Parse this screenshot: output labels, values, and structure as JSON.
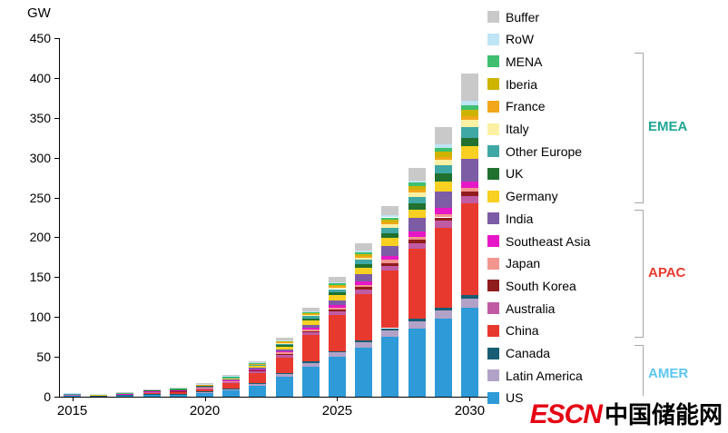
{
  "axis": {
    "unit": "GW"
  },
  "watermark": {
    "logo": "ESCN",
    "site_name": "中国储能网"
  },
  "chart_data": {
    "type": "bar",
    "stacked": true,
    "title": "",
    "ylabel": "GW",
    "xlabel": "",
    "ylim": [
      0,
      450
    ],
    "grid": false,
    "legend_position": "right",
    "y_ticks": [
      0,
      50,
      100,
      150,
      200,
      250,
      300,
      350,
      400,
      450
    ],
    "categories": [
      "2015",
      "2016",
      "2017",
      "2018",
      "2019",
      "2020",
      "2021",
      "2022",
      "2023",
      "2024",
      "2025",
      "2026",
      "2027",
      "2028",
      "2029",
      "2030"
    ],
    "x_ticks": [
      {
        "index": 0,
        "label": "2015"
      },
      {
        "index": 5,
        "label": "2020"
      },
      {
        "index": 10,
        "label": "2025"
      },
      {
        "index": 15,
        "label": "2030"
      }
    ],
    "series": [
      {
        "name": "US",
        "color": "#2E9AD8",
        "values": [
          1.5,
          1,
          1.5,
          2.5,
          3,
          5,
          8,
          14,
          25,
          38,
          50,
          62,
          75,
          85,
          98,
          112
        ]
      },
      {
        "name": "Latin America",
        "color": "#B3A2C7",
        "values": [
          0.3,
          0.2,
          0.3,
          0.5,
          0.5,
          1,
          1.5,
          2.5,
          3.5,
          4.5,
          5.5,
          6.5,
          8,
          9,
          10,
          11
        ]
      },
      {
        "name": "Canada",
        "color": "#175E74",
        "values": [
          0.1,
          0.1,
          0.1,
          0.2,
          0.3,
          0.4,
          0.5,
          1,
          1,
          1.5,
          2,
          2.5,
          3,
          3.5,
          4,
          4.5
        ]
      },
      {
        "name": "China",
        "color": "#E8392E",
        "values": [
          0.5,
          0.5,
          1,
          2.5,
          2.5,
          3.5,
          7,
          12,
          20,
          33,
          45,
          58,
          72,
          88,
          100,
          115
        ]
      },
      {
        "name": "Australia",
        "color": "#C05BA4",
        "values": [
          0.3,
          0.2,
          0.3,
          0.5,
          0.6,
          0.8,
          1.2,
          2,
          3,
          3.5,
          4.5,
          5.5,
          6.5,
          7.5,
          8.5,
          9.5
        ]
      },
      {
        "name": "South Korea",
        "color": "#8F1D1D",
        "values": [
          0.3,
          0.2,
          0.3,
          0.5,
          0.5,
          0.6,
          0.8,
          1.2,
          1.5,
          2,
          2.5,
          3,
          3.5,
          4,
          4.5,
          5
        ]
      },
      {
        "name": "Japan",
        "color": "#F2968F",
        "values": [
          0.2,
          0.2,
          0.3,
          0.4,
          0.5,
          0.6,
          0.8,
          1,
          1.5,
          2,
          2.5,
          3,
          3.5,
          4,
          4.5,
          5
        ]
      },
      {
        "name": "Southeast Asia",
        "color": "#E617C6",
        "values": [
          0.1,
          0.1,
          0.1,
          0.2,
          0.3,
          0.4,
          0.6,
          1,
          1.5,
          2,
          3,
          4,
          5,
          6,
          7,
          8
        ]
      },
      {
        "name": "India",
        "color": "#7D5CA6",
        "values": [
          0.1,
          0.1,
          0.2,
          0.3,
          0.4,
          0.6,
          1,
          1.5,
          2.5,
          4,
          6,
          9,
          13,
          17,
          21,
          28
        ]
      },
      {
        "name": "Germany",
        "color": "#F7D021",
        "values": [
          0.3,
          0.2,
          0.3,
          0.5,
          0.6,
          0.8,
          1.2,
          2,
          3.5,
          5,
          6.5,
          8,
          9.5,
          11,
          13,
          16
        ]
      },
      {
        "name": "UK",
        "color": "#20712F",
        "values": [
          0.1,
          0.1,
          0.2,
          0.3,
          0.4,
          0.5,
          0.8,
          1.2,
          2,
          3,
          4,
          5,
          6.5,
          8,
          9.5,
          11
        ]
      },
      {
        "name": "Other Europe",
        "color": "#3FA8A4",
        "values": [
          0.1,
          0.1,
          0.2,
          0.3,
          0.4,
          0.5,
          0.7,
          1,
          1.5,
          2.5,
          3.5,
          5,
          6.5,
          8,
          10,
          13
        ]
      },
      {
        "name": "Italy",
        "color": "#FCF0A3",
        "values": [
          0,
          0,
          0.1,
          0.1,
          0.2,
          0.3,
          0.4,
          0.6,
          1,
          1.5,
          2,
          3,
          4,
          5.5,
          7,
          9
        ]
      },
      {
        "name": "France",
        "color": "#F2A71B",
        "values": [
          0,
          0,
          0.1,
          0.1,
          0.2,
          0.2,
          0.3,
          0.5,
          0.8,
          1,
          1.5,
          2,
          2.5,
          3,
          4,
          5
        ]
      },
      {
        "name": "Iberia",
        "color": "#CDB400",
        "values": [
          0,
          0,
          0,
          0.1,
          0.1,
          0.2,
          0.3,
          0.5,
          0.8,
          1.2,
          1.8,
          2.5,
          3.5,
          5,
          6.5,
          8
        ]
      },
      {
        "name": "MENA",
        "color": "#3FBF6F",
        "values": [
          0,
          0,
          0.1,
          0.1,
          0.2,
          0.3,
          0.4,
          0.6,
          1,
          1.5,
          2,
          2.5,
          3,
          4,
          5,
          6
        ]
      },
      {
        "name": "RoW",
        "color": "#BFE4F5",
        "values": [
          0.1,
          0.1,
          0.1,
          0.2,
          0.3,
          0.3,
          0.5,
          0.7,
          1,
          1.3,
          1.7,
          2,
          2.5,
          3,
          4,
          5
        ]
      },
      {
        "name": "Buffer",
        "color": "#C9C9C9",
        "values": [
          0,
          0,
          0.1,
          0.2,
          0.5,
          0.6,
          1,
          1.7,
          2.9,
          4.5,
          6,
          8.5,
          12,
          15.5,
          21.5,
          35
        ]
      }
    ],
    "legend_order": [
      "Buffer",
      "RoW",
      "MENA",
      "Iberia",
      "France",
      "Italy",
      "Other Europe",
      "UK",
      "Germany",
      "India",
      "Southeast Asia",
      "Japan",
      "South Korea",
      "Australia",
      "China",
      "Canada",
      "Latin America",
      "US"
    ],
    "groups": [
      {
        "label": "EMEA",
        "color": "#21A695",
        "from": "MENA",
        "to": "Germany"
      },
      {
        "label": "APAC",
        "color": "#E8392E",
        "from": "India",
        "to": "China"
      },
      {
        "label": "AMER",
        "color": "#5BC6F2",
        "from": "Canada",
        "to": "US"
      }
    ]
  }
}
